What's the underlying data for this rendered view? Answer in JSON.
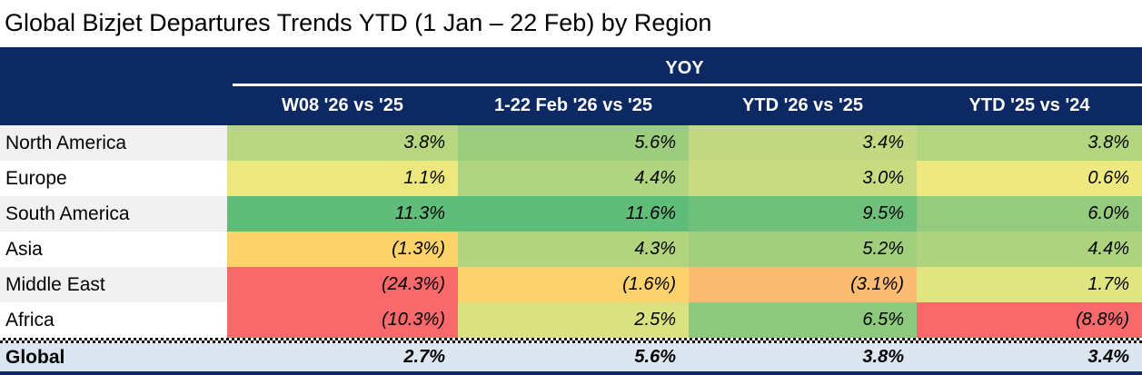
{
  "title": "Global Bizjet Departures Trends YTD (1 Jan – 22 Feb) by Region",
  "colors": {
    "header_bg": "#0c2963",
    "header_text": "#ffffff",
    "global_row_bg": "#dce6f1",
    "label_band_gray": "#f1f1f2",
    "label_band_white": "#ffffff",
    "heat_red": "#f8696b",
    "heat_yellow": "#ffeb84",
    "heat_green": "#5fbc79"
  },
  "table": {
    "group_header": "YOY",
    "columns": [
      "W08 '26 vs '25",
      "1-22 Feb '26 vs '25",
      "YTD '26 vs '25",
      "YTD '25 vs '24"
    ],
    "rows": [
      {
        "region": "North America",
        "label_bg": "#f1f1f2",
        "cells": [
          {
            "value": "3.8%",
            "bg": "#b7d67f"
          },
          {
            "value": "5.6%",
            "bg": "#9ccd7e"
          },
          {
            "value": "3.4%",
            "bg": "#c2d981"
          },
          {
            "value": "3.8%",
            "bg": "#b4d57f"
          }
        ]
      },
      {
        "region": "Europe",
        "label_bg": "#ffffff",
        "cells": [
          {
            "value": "1.1%",
            "bg": "#ece87e"
          },
          {
            "value": "4.4%",
            "bg": "#b0d47f"
          },
          {
            "value": "3.0%",
            "bg": "#c8db81"
          },
          {
            "value": "0.6%",
            "bg": "#ede87f"
          }
        ]
      },
      {
        "region": "South America",
        "label_bg": "#f1f1f2",
        "cells": [
          {
            "value": "11.3%",
            "bg": "#5fbc79"
          },
          {
            "value": "11.6%",
            "bg": "#5fbc79"
          },
          {
            "value": "9.5%",
            "bg": "#6fc07b"
          },
          {
            "value": "6.0%",
            "bg": "#95cb7e"
          }
        ]
      },
      {
        "region": "Asia",
        "label_bg": "#ffffff",
        "cells": [
          {
            "value": "(1.3%)",
            "bg": "#fcd369"
          },
          {
            "value": "4.3%",
            "bg": "#b2d47f"
          },
          {
            "value": "5.2%",
            "bg": "#a2cf7e"
          },
          {
            "value": "4.4%",
            "bg": "#aed37f"
          }
        ]
      },
      {
        "region": "Middle East",
        "label_bg": "#f1f1f2",
        "cells": [
          {
            "value": "(24.3%)",
            "bg": "#f8696b"
          },
          {
            "value": "(1.6%)",
            "bg": "#fcd26d"
          },
          {
            "value": "(3.1%)",
            "bg": "#fbbc72"
          },
          {
            "value": "1.7%",
            "bg": "#e0e481"
          }
        ]
      },
      {
        "region": "Africa",
        "label_bg": "#ffffff",
        "cells": [
          {
            "value": "(10.3%)",
            "bg": "#f8696b"
          },
          {
            "value": "2.5%",
            "bg": "#d9e181"
          },
          {
            "value": "6.5%",
            "bg": "#8dc97d"
          },
          {
            "value": "(8.8%)",
            "bg": "#f8696b"
          }
        ]
      }
    ],
    "global_row": {
      "region": "Global",
      "bg": "#dce6f1",
      "cells": [
        {
          "value": "2.7%"
        },
        {
          "value": "5.6%"
        },
        {
          "value": "3.8%"
        },
        {
          "value": "3.4%"
        }
      ]
    }
  },
  "chart_data": {
    "type": "table",
    "title": "Global Bizjet Departures Trends YTD (1 Jan – 22 Feb) by Region",
    "group_header": "YOY",
    "columns": [
      "W08 '26 vs '25",
      "1-22 Feb '26 vs '25",
      "YTD '26 vs '25",
      "YTD '25 vs '24"
    ],
    "unit": "percent YOY change",
    "rows": [
      {
        "region": "North America",
        "values": [
          3.8,
          5.6,
          3.4,
          3.8
        ]
      },
      {
        "region": "Europe",
        "values": [
          1.1,
          4.4,
          3.0,
          0.6
        ]
      },
      {
        "region": "South America",
        "values": [
          11.3,
          11.6,
          9.5,
          6.0
        ]
      },
      {
        "region": "Asia",
        "values": [
          -1.3,
          4.3,
          5.2,
          4.4
        ]
      },
      {
        "region": "Middle East",
        "values": [
          -24.3,
          -1.6,
          -3.1,
          1.7
        ]
      },
      {
        "region": "Africa",
        "values": [
          -10.3,
          2.5,
          6.5,
          -8.8
        ]
      },
      {
        "region": "Global",
        "values": [
          2.7,
          5.6,
          3.8,
          3.4
        ]
      }
    ],
    "layout_hints": "negative values shown in parentheses; cells shaded red-yellow-green heatmap by value; Global summary row on light blue band separated by checkered divider"
  }
}
